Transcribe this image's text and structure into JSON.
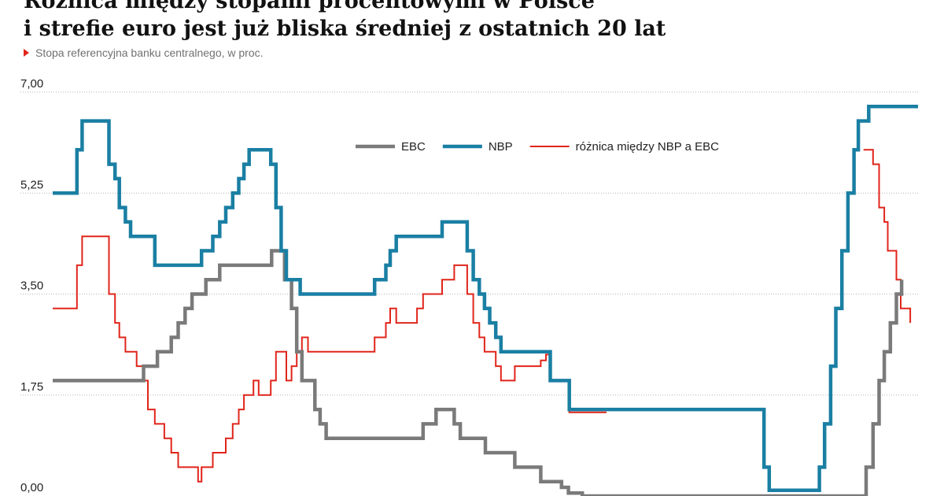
{
  "colors": {
    "ebc": "#7a7a7a",
    "nbp": "#1a7fa3",
    "diff": "#e0251b",
    "grid": "#b5b5b5",
    "marker": "#e0251b"
  },
  "chart_data": {
    "type": "line",
    "title_lines": [
      "Różnica między stopami procentowymi w Polsce",
      "i strefie euro jest już bliska średniej z ostatnich 20 lat"
    ],
    "subtitle": "Stopa referencyjna banku centralnego, w proc.",
    "xlabel": "",
    "ylabel": "",
    "ylim": [
      0,
      7
    ],
    "yticks": [
      "0,00",
      "1,75",
      "3,50",
      "5,25",
      "7,00"
    ],
    "ytick_values": [
      0,
      1.75,
      3.5,
      5.25,
      7.0
    ],
    "grid": "horizontal dotted",
    "legend_position": "top-center",
    "x_range": [
      0,
      1
    ],
    "series": [
      {
        "key": "ebc",
        "name": "EBC",
        "points": [
          [
            0.0,
            2.0
          ],
          [
            0.097,
            2.0
          ],
          [
            0.105,
            2.25
          ],
          [
            0.113,
            2.25
          ],
          [
            0.121,
            2.5
          ],
          [
            0.129,
            2.5
          ],
          [
            0.137,
            2.75
          ],
          [
            0.145,
            3.0
          ],
          [
            0.153,
            3.25
          ],
          [
            0.161,
            3.5
          ],
          [
            0.169,
            3.5
          ],
          [
            0.177,
            3.75
          ],
          [
            0.185,
            3.75
          ],
          [
            0.193,
            4.0
          ],
          [
            0.245,
            4.0
          ],
          [
            0.253,
            4.25
          ],
          [
            0.261,
            4.25
          ],
          [
            0.268,
            3.75
          ],
          [
            0.276,
            3.25
          ],
          [
            0.282,
            2.5
          ],
          [
            0.288,
            2.0
          ],
          [
            0.295,
            2.0
          ],
          [
            0.303,
            1.5
          ],
          [
            0.309,
            1.25
          ],
          [
            0.316,
            1.0
          ],
          [
            0.421,
            1.0
          ],
          [
            0.428,
            1.25
          ],
          [
            0.436,
            1.25
          ],
          [
            0.443,
            1.5
          ],
          [
            0.457,
            1.5
          ],
          [
            0.464,
            1.25
          ],
          [
            0.471,
            1.0
          ],
          [
            0.493,
            1.0
          ],
          [
            0.5,
            0.75
          ],
          [
            0.527,
            0.75
          ],
          [
            0.534,
            0.5
          ],
          [
            0.559,
            0.5
          ],
          [
            0.564,
            0.25
          ],
          [
            0.58,
            0.25
          ],
          [
            0.588,
            0.15
          ],
          [
            0.596,
            0.05
          ],
          [
            0.604,
            0.05
          ],
          [
            0.612,
            0.0
          ],
          [
            0.93,
            0.0
          ],
          [
            0.94,
            0.5
          ],
          [
            0.948,
            1.25
          ],
          [
            0.955,
            2.0
          ],
          [
            0.961,
            2.5
          ],
          [
            0.968,
            3.0
          ],
          [
            0.975,
            3.5
          ],
          [
            0.981,
            3.75
          ]
        ]
      },
      {
        "key": "nbp",
        "name": "NBP",
        "points": [
          [
            0.0,
            5.25
          ],
          [
            0.024,
            5.25
          ],
          [
            0.028,
            6.0
          ],
          [
            0.034,
            6.5
          ],
          [
            0.058,
            6.5
          ],
          [
            0.065,
            5.75
          ],
          [
            0.072,
            5.5
          ],
          [
            0.077,
            5.0
          ],
          [
            0.084,
            4.75
          ],
          [
            0.09,
            4.5
          ],
          [
            0.11,
            4.5
          ],
          [
            0.118,
            4.0
          ],
          [
            0.168,
            4.0
          ],
          [
            0.172,
            4.25
          ],
          [
            0.18,
            4.25
          ],
          [
            0.185,
            4.5
          ],
          [
            0.193,
            4.75
          ],
          [
            0.2,
            5.0
          ],
          [
            0.208,
            5.25
          ],
          [
            0.215,
            5.5
          ],
          [
            0.221,
            5.75
          ],
          [
            0.227,
            6.0
          ],
          [
            0.248,
            6.0
          ],
          [
            0.252,
            5.75
          ],
          [
            0.258,
            5.0
          ],
          [
            0.264,
            4.25
          ],
          [
            0.27,
            3.75
          ],
          [
            0.28,
            3.75
          ],
          [
            0.286,
            3.5
          ],
          [
            0.366,
            3.5
          ],
          [
            0.372,
            3.75
          ],
          [
            0.38,
            3.75
          ],
          [
            0.385,
            4.0
          ],
          [
            0.39,
            4.25
          ],
          [
            0.397,
            4.5
          ],
          [
            0.443,
            4.5
          ],
          [
            0.45,
            4.75
          ],
          [
            0.472,
            4.75
          ],
          [
            0.479,
            4.25
          ],
          [
            0.486,
            3.75
          ],
          [
            0.493,
            3.5
          ],
          [
            0.499,
            3.25
          ],
          [
            0.505,
            3.0
          ],
          [
            0.512,
            2.75
          ],
          [
            0.518,
            2.5
          ],
          [
            0.57,
            2.5
          ],
          [
            0.575,
            2.0
          ],
          [
            0.59,
            2.0
          ],
          [
            0.597,
            1.5
          ],
          [
            0.813,
            1.5
          ],
          [
            0.822,
            0.5
          ],
          [
            0.828,
            0.1
          ],
          [
            0.878,
            0.1
          ],
          [
            0.886,
            0.5
          ],
          [
            0.892,
            1.25
          ],
          [
            0.899,
            2.25
          ],
          [
            0.905,
            3.25
          ],
          [
            0.912,
            4.25
          ],
          [
            0.919,
            5.25
          ],
          [
            0.926,
            6.0
          ],
          [
            0.931,
            6.5
          ],
          [
            0.937,
            6.5
          ],
          [
            0.943,
            6.75
          ],
          [
            1.0,
            6.75
          ]
        ]
      },
      {
        "key": "diff",
        "name": "różnica między NBP a EBC",
        "points": [
          [
            0.0,
            3.25
          ],
          [
            0.024,
            3.25
          ],
          [
            0.028,
            4.0
          ],
          [
            0.034,
            4.5
          ],
          [
            0.058,
            4.5
          ],
          [
            0.065,
            3.5
          ],
          [
            0.072,
            3.0
          ],
          [
            0.077,
            2.75
          ],
          [
            0.084,
            2.5
          ],
          [
            0.09,
            2.5
          ],
          [
            0.097,
            2.25
          ],
          [
            0.105,
            2.0
          ],
          [
            0.11,
            1.5
          ],
          [
            0.118,
            1.25
          ],
          [
            0.129,
            1.0
          ],
          [
            0.137,
            0.75
          ],
          [
            0.145,
            0.5
          ],
          [
            0.153,
            0.5
          ],
          [
            0.161,
            0.5
          ],
          [
            0.168,
            0.25
          ],
          [
            0.172,
            0.5
          ],
          [
            0.18,
            0.5
          ],
          [
            0.185,
            0.75
          ],
          [
            0.193,
            0.75
          ],
          [
            0.2,
            1.0
          ],
          [
            0.208,
            1.25
          ],
          [
            0.215,
            1.5
          ],
          [
            0.221,
            1.75
          ],
          [
            0.227,
            1.75
          ],
          [
            0.232,
            2.0
          ],
          [
            0.238,
            1.75
          ],
          [
            0.248,
            1.75
          ],
          [
            0.252,
            2.0
          ],
          [
            0.258,
            2.5
          ],
          [
            0.264,
            2.5
          ],
          [
            0.27,
            2.0
          ],
          [
            0.276,
            2.25
          ],
          [
            0.282,
            2.5
          ],
          [
            0.288,
            2.75
          ],
          [
            0.295,
            2.5
          ],
          [
            0.366,
            2.5
          ],
          [
            0.372,
            2.75
          ],
          [
            0.38,
            2.75
          ],
          [
            0.385,
            3.0
          ],
          [
            0.39,
            3.25
          ],
          [
            0.397,
            3.0
          ],
          [
            0.41,
            3.0
          ],
          [
            0.421,
            3.25
          ],
          [
            0.428,
            3.5
          ],
          [
            0.443,
            3.5
          ],
          [
            0.45,
            3.75
          ],
          [
            0.457,
            3.75
          ],
          [
            0.464,
            4.0
          ],
          [
            0.472,
            4.0
          ],
          [
            0.479,
            3.5
          ],
          [
            0.486,
            3.0
          ],
          [
            0.493,
            2.75
          ],
          [
            0.499,
            2.5
          ],
          [
            0.505,
            2.5
          ],
          [
            0.512,
            2.25
          ],
          [
            0.518,
            2.0
          ],
          [
            0.527,
            2.0
          ],
          [
            0.534,
            2.25
          ],
          [
            0.559,
            2.25
          ],
          [
            0.564,
            2.35
          ],
          [
            0.57,
            2.45
          ],
          [
            0.575,
            2.0
          ],
          [
            0.59,
            2.0
          ],
          [
            0.597,
            1.45
          ],
          [
            0.64,
            1.45
          ]
        ]
      },
      {
        "key": "diff",
        "name": "",
        "points": [
          [
            0.937,
            6.0
          ],
          [
            0.943,
            6.0
          ],
          [
            0.948,
            5.75
          ],
          [
            0.955,
            5.0
          ],
          [
            0.961,
            4.75
          ],
          [
            0.965,
            4.25
          ],
          [
            0.968,
            4.25
          ],
          [
            0.975,
            3.75
          ],
          [
            0.98,
            3.25
          ],
          [
            0.985,
            3.25
          ],
          [
            0.991,
            3.0
          ]
        ]
      }
    ]
  }
}
